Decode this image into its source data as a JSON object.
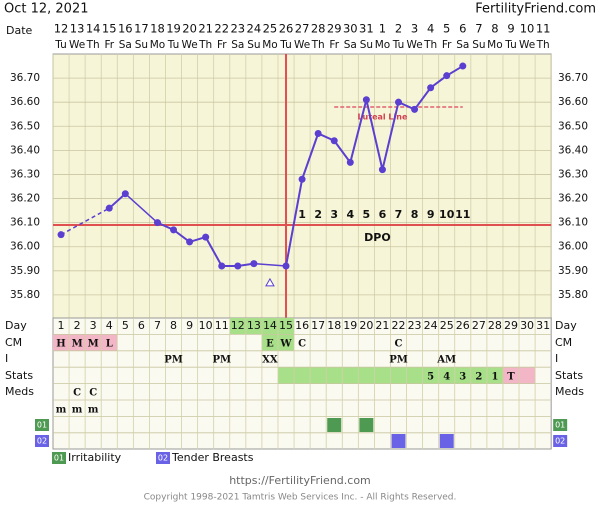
{
  "header": {
    "date": "Oct 12, 2021",
    "site": "FertilityFriend.com"
  },
  "chart_data": {
    "type": "line",
    "date_label": "Date",
    "dates": [
      "12",
      "13",
      "14",
      "15",
      "16",
      "17",
      "18",
      "19",
      "20",
      "21",
      "22",
      "23",
      "24",
      "25",
      "26",
      "27",
      "28",
      "29",
      "30",
      "31",
      "1",
      "2",
      "3",
      "4",
      "5",
      "6",
      "7",
      "8",
      "9",
      "10",
      "11"
    ],
    "weekdays": [
      "Tu",
      "We",
      "Th",
      "Fr",
      "Sa",
      "Su",
      "Mo",
      "Tu",
      "We",
      "Th",
      "Fr",
      "Sa",
      "Su",
      "Mo",
      "Tu",
      "We",
      "Th",
      "Fr",
      "Sa",
      "Su",
      "Mo",
      "Tu",
      "We",
      "Th",
      "Fr",
      "Sa",
      "Su",
      "Mo",
      "Tu",
      "We",
      "Th"
    ],
    "temperatures": [
      36.05,
      null,
      null,
      36.16,
      36.22,
      null,
      36.1,
      36.07,
      36.02,
      36.04,
      35.92,
      35.92,
      35.93,
      null,
      35.92,
      36.28,
      36.47,
      36.44,
      36.35,
      36.61,
      36.32,
      36.6,
      36.57,
      36.66,
      36.71,
      36.75,
      null,
      null,
      null,
      null,
      null
    ],
    "discarded_temperatures": [
      null,
      null,
      null,
      null,
      null,
      null,
      null,
      null,
      null,
      null,
      null,
      null,
      null,
      35.85,
      null,
      null,
      null,
      null,
      null,
      null,
      null,
      null,
      null,
      null,
      null,
      null,
      null,
      null,
      null,
      null,
      null
    ],
    "color": "#5b3fd1",
    "ylim": [
      35.7,
      36.8
    ],
    "yticks": [
      {
        "value": 36.7,
        "label": "36.70"
      },
      {
        "value": 36.6,
        "label": "36.60"
      },
      {
        "value": 36.5,
        "label": "36.50"
      },
      {
        "value": 36.4,
        "label": "36.40"
      },
      {
        "value": 36.3,
        "label": "36.30"
      },
      {
        "value": 36.2,
        "label": "36.20"
      },
      {
        "value": 36.1,
        "label": "36.10"
      },
      {
        "value": 36.0,
        "label": "36.00"
      },
      {
        "value": 35.9,
        "label": "35.90"
      },
      {
        "value": 35.8,
        "label": "35.80"
      }
    ],
    "coverline": 36.09,
    "ovulation_day": 15,
    "line_color": "#e05050",
    "luteal_line": {
      "label": "Luteal Line",
      "value": 36.58,
      "from_day": 18,
      "to_day": 26
    },
    "dpo_label": "DPO",
    "dpo": [
      null,
      null,
      null,
      null,
      null,
      null,
      null,
      null,
      null,
      null,
      null,
      null,
      null,
      null,
      null,
      1,
      2,
      3,
      4,
      5,
      6,
      7,
      8,
      9,
      10,
      11,
      null,
      null,
      null,
      null,
      null
    ]
  },
  "table": {
    "day_label": "Day",
    "days": [
      1,
      2,
      3,
      4,
      5,
      6,
      7,
      8,
      9,
      10,
      11,
      12,
      13,
      14,
      15,
      16,
      17,
      18,
      19,
      20,
      21,
      22,
      23,
      24,
      25,
      26,
      27,
      28,
      29,
      30,
      31
    ],
    "day_colors": [
      null,
      null,
      null,
      null,
      null,
      null,
      null,
      null,
      null,
      null,
      null,
      "#a8e08a",
      "#a8e08a",
      "#a8e08a",
      "#a8e08a",
      null,
      null,
      null,
      null,
      null,
      null,
      null,
      null,
      null,
      null,
      null,
      null,
      null,
      null,
      null,
      null
    ],
    "cm_label": "CM",
    "cm": [
      "H",
      "M",
      "M",
      "L",
      null,
      null,
      null,
      null,
      null,
      null,
      null,
      null,
      null,
      "E",
      "W",
      "C",
      null,
      null,
      null,
      null,
      null,
      "C",
      null,
      null,
      null,
      null,
      null,
      null,
      null,
      null,
      null
    ],
    "cm_colors": [
      "#f2b6c6",
      "#f2b6c6",
      "#f2b6c6",
      "#f2b6c6",
      null,
      null,
      null,
      null,
      null,
      null,
      null,
      null,
      null,
      "#a8e08a",
      "#a8e08a",
      null,
      null,
      null,
      null,
      null,
      null,
      null,
      null,
      null,
      null,
      null,
      null,
      null,
      null,
      null,
      null
    ],
    "i_label": "I",
    "i": [
      null,
      null,
      null,
      null,
      null,
      null,
      null,
      "PM",
      null,
      null,
      "PM",
      null,
      null,
      "XX",
      null,
      null,
      null,
      null,
      null,
      null,
      null,
      "PM",
      null,
      null,
      "AM",
      null,
      null,
      null,
      null,
      null,
      null
    ],
    "stats_label": "Stats",
    "stats": [
      null,
      null,
      null,
      null,
      null,
      null,
      null,
      null,
      null,
      null,
      null,
      null,
      null,
      null,
      null,
      null,
      null,
      null,
      null,
      null,
      null,
      null,
      null,
      "5",
      "4",
      "3",
      "2",
      "1",
      "T",
      null,
      null
    ],
    "stats_colors": [
      null,
      null,
      null,
      null,
      null,
      null,
      null,
      null,
      null,
      null,
      null,
      null,
      null,
      null,
      "#a8e08a",
      "#a8e08a",
      "#a8e08a",
      "#a8e08a",
      "#a8e08a",
      "#a8e08a",
      "#a8e08a",
      "#a8e08a",
      "#a8e08a",
      "#a8e08a",
      "#a8e08a",
      "#a8e08a",
      "#a8e08a",
      "#a8e08a",
      "#f2b6c6",
      "#f2b6c6",
      null
    ],
    "meds_label": "Meds",
    "meds": [
      null,
      "C",
      "C",
      null,
      null,
      null,
      null,
      null,
      null,
      null,
      null,
      null,
      null,
      null,
      null,
      null,
      null,
      null,
      null,
      null,
      null,
      null,
      null,
      null,
      null,
      null,
      null,
      null,
      null,
      null,
      null
    ],
    "meds2": [
      "m",
      "m",
      "m",
      null,
      null,
      null,
      null,
      null,
      null,
      null,
      null,
      null,
      null,
      null,
      null,
      null,
      null,
      null,
      null,
      null,
      null,
      null,
      null,
      null,
      null,
      null,
      null,
      null,
      null,
      null,
      null
    ],
    "symptoms": [
      {
        "code": "01",
        "name": "Irritability",
        "color": "#4f9a52",
        "days": [
          18,
          20
        ]
      },
      {
        "code": "02",
        "name": "Tender Breasts",
        "color": "#6a62e6",
        "days": [
          22,
          25
        ]
      }
    ]
  },
  "footer": {
    "url": "https://FertilityFriend.com",
    "copyright": "Copyright 1998-2021 Tamtris Web Services Inc. - All Rights Reserved."
  }
}
